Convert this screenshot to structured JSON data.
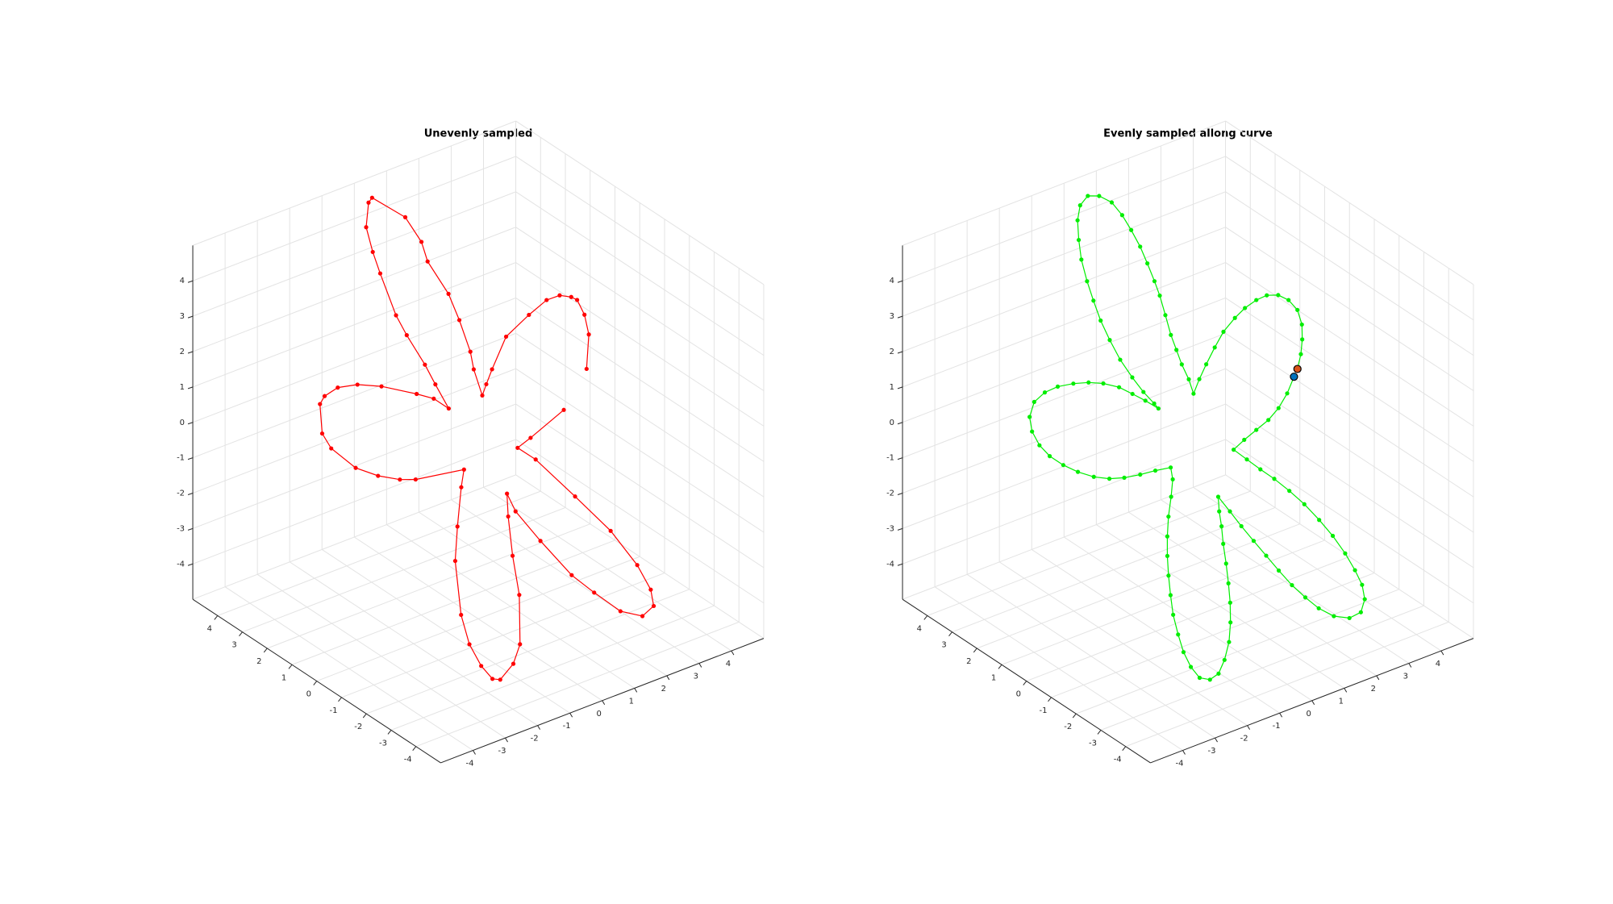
{
  "chart_data": [
    {
      "type": "line3d",
      "title": "Unevenly sampled",
      "xlim": [
        -5,
        5
      ],
      "ylim": [
        -5,
        5
      ],
      "zlim": [
        -5,
        5
      ],
      "xticks": [
        -4,
        -3,
        -2,
        -1,
        0,
        1,
        2,
        3,
        4
      ],
      "yticks": [
        -4,
        -3,
        -2,
        -1,
        0,
        1,
        2,
        3,
        4
      ],
      "zticks": [
        -4,
        -3,
        -2,
        -1,
        0,
        1,
        2,
        3,
        4
      ],
      "grid": true,
      "series": [
        {
          "color": "#ff0000",
          "marker": true,
          "x": [
            2.74,
            3.07,
            3.15,
            3.13,
            3.04,
            2.82,
            2.53,
            2.06,
            1.43,
            0.88,
            0.64,
            0.47,
            0.52,
            0.6,
            0.65,
            0.66,
            0.52,
            0.56,
            0.45,
            -0.04,
            -0.15,
            -0.4,
            -0.48,
            -0.51,
            -0.55,
            -0.51,
            -0.4,
            -0.36,
            -0.3,
            -0.51,
            -0.81,
            -1.43,
            -1.89,
            -2.3,
            -2.63,
            -2.79,
            -2.99,
            -2.94,
            -2.62,
            -2.25,
            -1.85,
            -1.54,
            -0.51,
            -0.71,
            -1.12,
            -1.45,
            -1.79,
            -1.87,
            -1.82,
            -1.71,
            -1.56,
            -1.17,
            -0.88,
            -0.48,
            -0.28,
            -0.04,
            0.13,
            0.15,
            0.39,
            0.72,
            1.01,
            1.37,
            1.76,
            2.07,
            2.14,
            2.09,
            1.85,
            1.44,
            0.98,
            0.72,
            1.06,
            1.95
          ],
          "y": [
            -0.8,
            -0.46,
            -0.18,
            0.09,
            0.21,
            0.39,
            0.54,
            0.64,
            0.74,
            0.59,
            0.51,
            0.45,
            0.86,
            1.1,
            1.61,
            2.06,
            2.72,
            3.02,
            3.53,
            4.23,
            4.23,
            4.0,
            3.63,
            3.29,
            2.6,
            2.22,
            1.63,
            1.26,
            0.8,
            1.13,
            1.43,
            2.04,
            2.41,
            2.67,
            2.77,
            2.75,
            2.4,
            2.1,
            1.53,
            1.11,
            0.75,
            0.52,
            -0.09,
            -0.24,
            -0.62,
            -0.96,
            -1.64,
            -2.08,
            -2.49,
            -2.8,
            -2.92,
            -2.94,
            -2.83,
            -2.28,
            -1.75,
            -1.26,
            -0.99,
            -1.31,
            -2.0,
            -2.83,
            -3.36,
            -3.95,
            -4.33,
            -4.38,
            -4.17,
            -3.69,
            -2.93,
            -2.03,
            -1.04,
            -0.65,
            -0.73,
            -0.91
          ],
          "z": [
            1.47,
            2.17,
            2.57,
            2.87,
            2.93,
            2.97,
            2.87,
            2.57,
            2.13,
            1.47,
            1.17,
            0.94,
            1.47,
            1.83,
            2.47,
            3.0,
            3.66,
            4.06,
            4.56,
            4.96,
            4.86,
            4.36,
            3.86,
            3.42,
            2.57,
            2.17,
            1.57,
            1.17,
            0.68,
            0.88,
            0.98,
            1.13,
            1.17,
            1.11,
            0.94,
            0.78,
            0.18,
            -0.12,
            -0.52,
            -0.68,
            -0.76,
            -0.76,
            -0.56,
            -0.92,
            -1.71,
            -2.41,
            -3.5,
            -4.1,
            -4.54,
            -4.8,
            -4.82,
            -4.5,
            -4.1,
            -3.1,
            -2.31,
            -1.51,
            -1.05,
            -1.41,
            -2.01,
            -2.71,
            -3.06,
            -3.44,
            -3.54,
            -3.34,
            -3.0,
            -2.51,
            -1.81,
            -1.11,
            -0.36,
            -0.12,
            0.08,
            0.64
          ]
        }
      ]
    },
    {
      "type": "line3d",
      "title": "Evenly sampled allong curve",
      "xlim": [
        -5,
        5
      ],
      "ylim": [
        -5,
        5
      ],
      "zlim": [
        -5,
        5
      ],
      "xticks": [
        -4,
        -3,
        -2,
        -1,
        0,
        1,
        2,
        3,
        4
      ],
      "yticks": [
        -4,
        -3,
        -2,
        -1,
        0,
        1,
        2,
        3,
        4
      ],
      "zticks": [
        -4,
        -3,
        -2,
        -1,
        0,
        1,
        2,
        3,
        4
      ],
      "grid": true,
      "series": [
        {
          "color": "#00ee00",
          "marker": true,
          "first_marker_color": "#d95319",
          "last_marker_color": "#0072bd",
          "x": [
            2.76,
            2.95,
            3.1,
            3.22,
            3.25,
            3.16,
            3.0,
            2.77,
            2.53,
            2.24,
            1.96,
            1.62,
            1.32,
            1.01,
            0.75,
            0.51,
            0.54,
            0.53,
            0.54,
            0.56,
            0.62,
            0.67,
            0.69,
            0.7,
            0.7,
            0.66,
            0.61,
            0.51,
            0.32,
            0.1,
            -0.13,
            -0.31,
            -0.45,
            -0.56,
            -0.63,
            -0.67,
            -0.7,
            -0.68,
            -0.64,
            -0.55,
            -0.45,
            -0.34,
            -0.3,
            -0.49,
            -0.69,
            -0.89,
            -1.17,
            -1.45,
            -1.76,
            -2.09,
            -2.39,
            -2.68,
            -2.9,
            -2.97,
            -2.94,
            -2.83,
            -2.64,
            -2.41,
            -2.14,
            -1.85,
            -1.55,
            -1.21,
            -0.88,
            -0.55,
            -0.61,
            -0.79,
            -1.01,
            -1.2,
            -1.36,
            -1.5,
            -1.63,
            -1.74,
            -1.81,
            -1.85,
            -1.83,
            -1.75,
            -1.56,
            -1.34,
            -1.11,
            -0.87,
            -0.68,
            -0.52,
            -0.39,
            -0.27,
            -0.16,
            -0.05,
            0.03,
            0.13,
            0.24,
            0.34,
            0.46,
            0.58,
            0.7,
            0.84,
            1.0,
            1.17,
            1.4,
            1.69,
            1.96,
            2.15,
            2.22,
            2.2,
            2.15,
            2.05,
            1.92,
            1.76,
            1.58,
            1.39,
            1.19,
            1.01,
            0.83,
            1.12,
            1.44,
            1.76,
            2.06,
            2.35,
            2.63
          ],
          "y": [
            -0.82,
            -0.71,
            -0.57,
            -0.4,
            -0.18,
            0.06,
            0.27,
            0.43,
            0.54,
            0.62,
            0.66,
            0.68,
            0.64,
            0.58,
            0.52,
            0.44,
            0.67,
            0.94,
            1.17,
            1.42,
            1.72,
            2.01,
            2.25,
            2.55,
            2.84,
            3.15,
            3.45,
            3.74,
            4.0,
            4.17,
            4.18,
            4.05,
            3.82,
            3.57,
            3.25,
            2.94,
            2.61,
            2.27,
            1.9,
            1.53,
            1.21,
            0.92,
            0.8,
            1.08,
            1.34,
            1.62,
            1.89,
            2.12,
            2.33,
            2.53,
            2.66,
            2.71,
            2.61,
            2.42,
            2.16,
            1.89,
            1.59,
            1.3,
            1.01,
            0.76,
            0.55,
            0.35,
            0.17,
            -0.02,
            -0.18,
            -0.35,
            -0.53,
            -0.73,
            -0.94,
            -1.17,
            -1.42,
            -1.67,
            -1.96,
            -2.23,
            -2.5,
            -2.75,
            -2.92,
            -2.98,
            -2.92,
            -2.79,
            -2.6,
            -2.38,
            -2.14,
            -1.89,
            -1.63,
            -1.42,
            -1.22,
            -1.05,
            -1.38,
            -1.71,
            -2.05,
            -2.4,
            -2.75,
            -3.1,
            -3.43,
            -3.75,
            -4.06,
            -4.31,
            -4.42,
            -4.33,
            -4.13,
            -3.87,
            -3.54,
            -3.17,
            -2.79,
            -2.4,
            -2.03,
            -1.67,
            -1.37,
            -1.06,
            -0.76,
            -0.81,
            -0.88,
            -0.95,
            -0.97,
            -0.94,
            -0.85
          ],
          "z": [
            1.47,
            1.77,
            2.07,
            2.37,
            2.67,
            2.87,
            2.97,
            2.97,
            2.87,
            2.71,
            2.51,
            2.23,
            1.91,
            1.57,
            1.27,
            0.98,
            1.27,
            1.57,
            1.87,
            2.17,
            2.57,
            2.97,
            3.26,
            3.62,
            3.96,
            4.3,
            4.6,
            4.86,
            4.99,
            4.99,
            4.8,
            4.5,
            4.1,
            3.7,
            3.26,
            2.87,
            2.47,
            2.07,
            1.67,
            1.31,
            1.01,
            0.78,
            0.68,
            0.84,
            0.98,
            1.11,
            1.19,
            1.21,
            1.19,
            1.13,
            1.01,
            0.82,
            0.52,
            0.22,
            -0.06,
            -0.28,
            -0.46,
            -0.6,
            -0.7,
            -0.74,
            -0.72,
            -0.66,
            -0.58,
            -0.52,
            -0.76,
            -1.11,
            -1.51,
            -1.91,
            -2.31,
            -2.71,
            -3.1,
            -3.5,
            -3.9,
            -4.26,
            -4.56,
            -4.78,
            -4.82,
            -4.7,
            -4.42,
            -4.06,
            -3.66,
            -3.26,
            -2.87,
            -2.47,
            -2.07,
            -1.71,
            -1.41,
            -1.11,
            -1.41,
            -1.71,
            -2.01,
            -2.31,
            -2.61,
            -2.91,
            -3.16,
            -3.38,
            -3.54,
            -3.58,
            -3.46,
            -3.2,
            -2.91,
            -2.61,
            -2.27,
            -1.91,
            -1.59,
            -1.27,
            -1.0,
            -0.76,
            -0.56,
            -0.36,
            -0.16,
            0.04,
            0.24,
            0.44,
            0.68,
            0.98,
            1.31
          ]
        }
      ]
    }
  ]
}
